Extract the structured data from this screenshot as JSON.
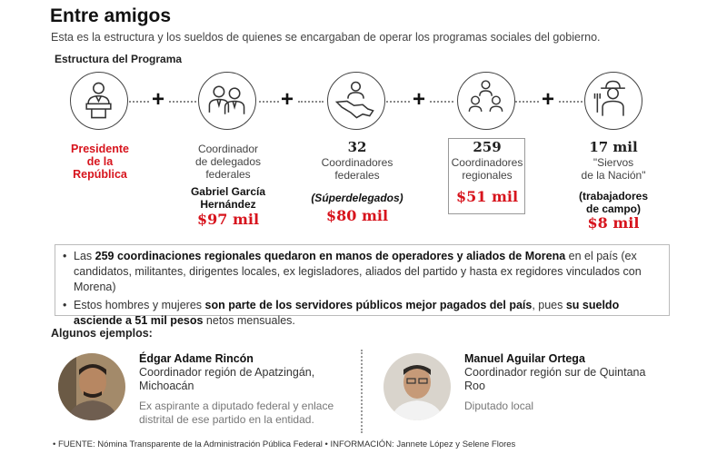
{
  "header": {
    "title": "Entre amigos",
    "subtitle": "Esta es la estructura y los sueldos de quienes se encargaban de operar los programas sociales del gobierno.",
    "section_title": "Estructura del Programa"
  },
  "structure": {
    "president": {
      "line1": "Presidente",
      "line2": "de la",
      "line3": "República",
      "icon": "president-podium-icon"
    },
    "coordinator_delegates": {
      "line1": "Coordinador",
      "line2": "de delegados",
      "line3": "federales",
      "name_line1": "Gabriel García",
      "name_line2": "Hernández",
      "salary": "$97 mil",
      "icon": "two-officials-icon"
    },
    "federal_coordinators": {
      "count": "32",
      "line1": "Coordinadores",
      "line2": "federales",
      "note": "(Súperdelegados)",
      "salary": "$80 mil",
      "icon": "official-map-icon"
    },
    "regional_coordinators": {
      "count": "259",
      "line1": "Coordinadores",
      "line2": "regionales",
      "salary": "$51 mil",
      "icon": "group-officials-icon"
    },
    "servants": {
      "count": "17 mil",
      "line1": "\"Siervos",
      "line2": "de la Nación\"",
      "note_line1": "(trabajadores",
      "note_line2": "de campo)",
      "salary": "$8 mil",
      "icon": "farmer-icon"
    },
    "accent_color": "#d7141d"
  },
  "bullets": {
    "b1_pre": "Las ",
    "b1_bold": "259 coordinaciones regionales quedaron en manos de operadores y aliados de Morena",
    "b1_post": " en el país (ex candidatos, militantes, dirigentes locales, ex legisladores, aliados del partido y hasta ex regidores vinculados con Morena)",
    "b2_pre": "Estos hombres y mujeres ",
    "b2_bold1": "son parte de los servidores públicos mejor pagados del país",
    "b2_mid": ", pues ",
    "b2_bold2": "su sueldo asciende a 51 mil pesos",
    "b2_post": " netos mensuales."
  },
  "examples": {
    "title": "Algunos ejemplos:",
    "person1": {
      "name": "Édgar Adame Rincón",
      "role_line1": "Coordinador región de Apatzingán,",
      "role_line2": "Michoacán",
      "desc_line1": "Ex aspirante a diputado federal y enlace",
      "desc_line2": "distrital de ese partido en la entidad."
    },
    "person2": {
      "name": "Manuel Aguilar Ortega",
      "role_line1": "Coordinador región sur de Quintana",
      "role_line2": "Roo",
      "desc_line1": "Diputado local"
    }
  },
  "footer": "• FUENTE: Nómina Transparente de la Administración Pública Federal • INFORMACIÓN: Jannete López y Selene Flores"
}
